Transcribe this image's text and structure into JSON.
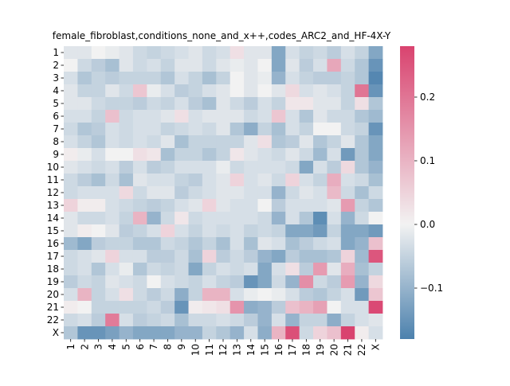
{
  "chart_data": {
    "type": "heatmap",
    "title": "female_fibroblast,conditions_none_and_x++,codes_ARC2_and_HF-4X-Y",
    "xlabel": "",
    "ylabel": "",
    "row_labels": [
      "1",
      "2",
      "3",
      "4",
      "5",
      "6",
      "7",
      "8",
      "9",
      "10",
      "11",
      "12",
      "13",
      "14",
      "15",
      "16",
      "17",
      "18",
      "19",
      "20",
      "21",
      "22",
      "X"
    ],
    "col_labels": [
      "1",
      "2",
      "3",
      "4",
      "5",
      "6",
      "7",
      "8",
      "9",
      "10",
      "11",
      "12",
      "13",
      "14",
      "15",
      "16",
      "17",
      "18",
      "19",
      "20",
      "21",
      "22",
      "X"
    ],
    "values": [
      [
        -0.02,
        -0.02,
        0.0,
        -0.01,
        -0.02,
        -0.04,
        -0.05,
        -0.04,
        -0.03,
        -0.02,
        -0.04,
        -0.03,
        0.03,
        -0.02,
        -0.02,
        -0.12,
        -0.03,
        -0.05,
        -0.04,
        -0.06,
        -0.03,
        -0.05,
        -0.12
      ],
      [
        0.0,
        -0.04,
        -0.06,
        -0.08,
        -0.02,
        -0.04,
        -0.03,
        -0.05,
        -0.02,
        -0.02,
        -0.04,
        -0.02,
        -0.01,
        -0.02,
        0.0,
        -0.12,
        -0.02,
        -0.06,
        -0.03,
        0.12,
        -0.04,
        -0.07,
        -0.15
      ],
      [
        -0.03,
        -0.07,
        -0.05,
        -0.06,
        -0.05,
        -0.05,
        -0.05,
        -0.07,
        -0.03,
        -0.05,
        -0.08,
        -0.05,
        0.0,
        -0.02,
        -0.01,
        -0.1,
        -0.03,
        -0.05,
        -0.06,
        -0.06,
        -0.05,
        -0.07,
        -0.17
      ],
      [
        -0.02,
        -0.05,
        -0.05,
        -0.02,
        -0.04,
        0.07,
        -0.01,
        -0.03,
        -0.06,
        -0.05,
        -0.03,
        -0.02,
        0.0,
        -0.02,
        0.0,
        -0.02,
        0.04,
        -0.03,
        -0.02,
        -0.03,
        -0.05,
        0.2,
        -0.15
      ],
      [
        -0.02,
        -0.02,
        -0.04,
        -0.05,
        -0.05,
        -0.06,
        -0.04,
        -0.05,
        -0.03,
        -0.06,
        -0.08,
        -0.02,
        -0.04,
        -0.06,
        -0.03,
        -0.05,
        0.02,
        0.02,
        -0.02,
        -0.02,
        -0.05,
        0.03,
        -0.07
      ],
      [
        -0.03,
        -0.03,
        -0.05,
        0.08,
        -0.04,
        -0.03,
        -0.03,
        -0.02,
        0.03,
        -0.03,
        -0.02,
        -0.02,
        -0.02,
        -0.04,
        -0.03,
        0.07,
        -0.03,
        -0.07,
        -0.02,
        -0.04,
        -0.04,
        -0.07,
        -0.09
      ],
      [
        -0.04,
        -0.07,
        -0.06,
        -0.03,
        -0.04,
        -0.03,
        -0.03,
        -0.05,
        -0.04,
        -0.03,
        -0.04,
        -0.02,
        -0.07,
        -0.11,
        -0.05,
        -0.08,
        -0.03,
        -0.05,
        0.0,
        0.0,
        -0.04,
        -0.05,
        -0.15
      ],
      [
        -0.03,
        -0.05,
        -0.07,
        -0.03,
        -0.04,
        -0.03,
        -0.04,
        -0.02,
        -0.08,
        -0.05,
        -0.05,
        -0.05,
        -0.05,
        -0.02,
        0.03,
        -0.07,
        -0.06,
        -0.02,
        -0.07,
        -0.05,
        -0.02,
        -0.07,
        -0.12
      ],
      [
        0.01,
        -0.01,
        -0.03,
        0.0,
        0.0,
        0.03,
        0.02,
        -0.08,
        -0.05,
        -0.05,
        -0.07,
        -0.05,
        0.02,
        -0.02,
        -0.03,
        -0.04,
        -0.02,
        -0.04,
        -0.09,
        -0.03,
        -0.14,
        -0.07,
        -0.12
      ],
      [
        -0.02,
        -0.03,
        -0.04,
        -0.03,
        -0.06,
        -0.03,
        -0.06,
        -0.05,
        -0.03,
        -0.03,
        -0.03,
        -0.01,
        -0.04,
        -0.03,
        -0.03,
        -0.03,
        -0.04,
        -0.12,
        -0.03,
        -0.06,
        0.04,
        -0.07,
        -0.1
      ],
      [
        -0.04,
        -0.06,
        -0.08,
        -0.04,
        -0.08,
        -0.02,
        -0.03,
        -0.03,
        -0.05,
        -0.06,
        -0.03,
        -0.02,
        0.05,
        -0.03,
        -0.02,
        -0.04,
        0.05,
        -0.03,
        -0.05,
        0.11,
        -0.03,
        -0.04,
        -0.08
      ],
      [
        -0.04,
        -0.03,
        -0.03,
        -0.03,
        0.04,
        -0.04,
        -0.02,
        -0.02,
        -0.06,
        -0.04,
        -0.03,
        -0.02,
        -0.02,
        -0.03,
        -0.03,
        -0.1,
        -0.04,
        -0.02,
        -0.03,
        0.09,
        -0.04,
        -0.08,
        -0.04
      ],
      [
        0.05,
        0.01,
        0.01,
        -0.03,
        -0.04,
        -0.05,
        -0.06,
        -0.05,
        -0.03,
        -0.02,
        0.05,
        -0.02,
        -0.03,
        -0.03,
        0.0,
        -0.06,
        -0.03,
        -0.03,
        -0.03,
        -0.02,
        0.14,
        -0.05,
        -0.07
      ],
      [
        -0.02,
        -0.04,
        -0.04,
        -0.03,
        -0.05,
        0.1,
        -0.1,
        -0.04,
        0.02,
        -0.04,
        -0.03,
        -0.03,
        -0.03,
        -0.03,
        -0.04,
        -0.1,
        -0.03,
        -0.07,
        -0.16,
        -0.03,
        -0.1,
        -0.04,
        0.0
      ],
      [
        -0.02,
        0.01,
        0.0,
        -0.02,
        -0.06,
        -0.05,
        -0.03,
        0.05,
        -0.03,
        -0.05,
        -0.03,
        -0.04,
        -0.03,
        -0.05,
        -0.04,
        -0.05,
        -0.12,
        -0.12,
        -0.14,
        -0.05,
        -0.12,
        -0.12,
        -0.14
      ],
      [
        -0.09,
        -0.12,
        -0.06,
        -0.05,
        -0.05,
        -0.07,
        -0.07,
        -0.04,
        -0.05,
        -0.07,
        -0.05,
        -0.08,
        -0.03,
        -0.08,
        -0.02,
        -0.03,
        -0.08,
        -0.06,
        -0.04,
        -0.03,
        -0.12,
        -0.1,
        0.08
      ],
      [
        -0.04,
        -0.03,
        -0.02,
        0.05,
        -0.03,
        -0.03,
        -0.06,
        -0.06,
        -0.04,
        -0.08,
        0.05,
        -0.06,
        -0.04,
        -0.06,
        -0.1,
        -0.12,
        -0.06,
        -0.08,
        -0.08,
        -0.07,
        0.05,
        -0.09,
        0.25
      ],
      [
        -0.04,
        -0.03,
        -0.07,
        -0.03,
        -0.01,
        -0.07,
        -0.04,
        -0.05,
        -0.04,
        -0.12,
        -0.05,
        -0.03,
        -0.04,
        -0.03,
        -0.12,
        -0.03,
        0.03,
        -0.06,
        0.14,
        -0.02,
        0.11,
        -0.08,
        -0.05
      ],
      [
        -0.06,
        -0.04,
        -0.05,
        -0.02,
        -0.03,
        -0.04,
        0.0,
        -0.03,
        -0.04,
        -0.05,
        -0.03,
        -0.05,
        -0.06,
        -0.15,
        -0.12,
        -0.04,
        -0.1,
        0.16,
        -0.04,
        -0.06,
        0.14,
        -0.1,
        0.04
      ],
      [
        -0.03,
        0.1,
        -0.05,
        -0.03,
        0.03,
        -0.04,
        -0.06,
        -0.04,
        -0.11,
        -0.05,
        0.1,
        0.1,
        -0.03,
        -0.01,
        0.0,
        -0.01,
        -0.03,
        -0.06,
        -0.07,
        -0.05,
        -0.03,
        -0.14,
        0.07
      ],
      [
        0.01,
        0.0,
        -0.05,
        -0.05,
        -0.05,
        -0.05,
        -0.04,
        -0.06,
        -0.15,
        0.01,
        0.02,
        0.03,
        0.15,
        -0.11,
        -0.1,
        -0.06,
        0.08,
        0.1,
        0.13,
        0.0,
        -0.03,
        -0.03,
        0.27
      ],
      [
        -0.04,
        -0.03,
        -0.06,
        0.19,
        -0.03,
        -0.06,
        -0.05,
        -0.04,
        -0.08,
        -0.04,
        -0.04,
        -0.03,
        -0.04,
        -0.06,
        -0.1,
        -0.03,
        -0.1,
        -0.05,
        -0.05,
        -0.11,
        -0.05,
        -0.03,
        -0.02
      ],
      [
        -0.07,
        -0.15,
        -0.15,
        -0.13,
        -0.1,
        -0.12,
        -0.12,
        -0.12,
        -0.1,
        -0.1,
        -0.05,
        -0.07,
        -0.1,
        -0.03,
        -0.11,
        0.1,
        0.26,
        -0.04,
        0.05,
        0.08,
        0.28,
        0.01,
        -0.03
      ]
    ],
    "colorbar": {
      "min": -0.18,
      "max": 0.28,
      "ticks": [
        -0.1,
        0.0,
        0.1,
        0.2
      ],
      "tick_labels": [
        "−0.1",
        "0.0",
        "0.1",
        "0.2"
      ]
    },
    "colors": {
      "low": "#4c81ad",
      "mid": "#f2f2f2",
      "high": "#d9436f"
    },
    "grid": false,
    "legend": "colorbar-right"
  }
}
